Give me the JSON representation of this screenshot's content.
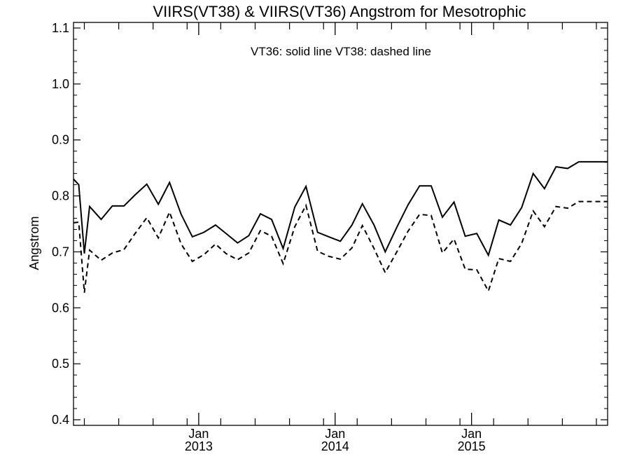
{
  "chart_data": {
    "type": "line",
    "title": "VIIRS(VT38) & VIIRS(VT36)  Angstrom for Mesotrophic",
    "xlabel": "",
    "ylabel": "Angstrom",
    "annotation": "VT36: solid line   VT38: dashed line",
    "ylim": [
      0.39,
      1.11
    ],
    "yticks": [
      0.4,
      0.5,
      0.6,
      0.7,
      0.8,
      0.9,
      1.0,
      1.1
    ],
    "ytick_labels": [
      "0.4",
      "0.5",
      "0.6",
      "0.7",
      "0.8",
      "0.9",
      "1.0",
      "1.1"
    ],
    "xlim": [
      "2012-02-01",
      "2015-12-31"
    ],
    "xticks": [
      {
        "date": "2013-01-01",
        "label_month": "Jan",
        "label_year": "2013"
      },
      {
        "date": "2014-01-01",
        "label_month": "Jan",
        "label_year": "2014"
      },
      {
        "date": "2015-01-01",
        "label_month": "Jan",
        "label_year": "2015"
      }
    ],
    "minor_ticks": [
      "2012-03-01",
      "2012-06-01",
      "2012-09-01",
      "2012-12-01",
      "2013-03-01",
      "2013-06-01",
      "2013-09-01",
      "2013-12-01",
      "2014-03-01",
      "2014-06-01",
      "2014-09-01",
      "2014-12-01",
      "2015-03-01",
      "2015-06-01",
      "2015-09-01",
      "2015-12-01"
    ],
    "x": [
      "2012-02-01",
      "2012-02-15",
      "2012-03-01",
      "2012-03-15",
      "2012-04-15",
      "2012-05-15",
      "2012-06-15",
      "2012-07-15",
      "2012-08-15",
      "2012-09-15",
      "2012-10-15",
      "2012-11-15",
      "2012-12-15",
      "2013-01-15",
      "2013-02-15",
      "2013-03-15",
      "2013-04-15",
      "2013-05-15",
      "2013-06-15",
      "2013-07-15",
      "2013-08-15",
      "2013-09-15",
      "2013-10-15",
      "2013-11-15",
      "2013-12-15",
      "2014-01-15",
      "2014-02-15",
      "2014-03-15",
      "2014-04-15",
      "2014-05-15",
      "2014-06-15",
      "2014-07-15",
      "2014-08-15",
      "2014-09-15",
      "2014-10-15",
      "2014-11-15",
      "2014-12-15",
      "2015-01-15",
      "2015-02-15",
      "2015-03-15",
      "2015-04-15",
      "2015-05-15",
      "2015-06-15",
      "2015-07-15",
      "2015-08-15",
      "2015-09-15",
      "2015-10-15",
      "2015-11-15",
      "2015-12-15",
      "2015-12-31"
    ],
    "series": [
      {
        "name": "VT36",
        "style": "solid",
        "values": [
          0.83,
          0.82,
          0.697,
          0.781,
          0.758,
          0.782,
          0.782,
          0.802,
          0.821,
          0.785,
          0.824,
          0.767,
          0.727,
          0.735,
          0.748,
          0.733,
          0.716,
          0.729,
          0.768,
          0.758,
          0.706,
          0.78,
          0.817,
          0.735,
          0.727,
          0.719,
          0.748,
          0.786,
          0.748,
          0.7,
          0.744,
          0.784,
          0.818,
          0.818,
          0.762,
          0.789,
          0.728,
          0.733,
          0.694,
          0.757,
          0.748,
          0.779,
          0.84,
          0.813,
          0.852,
          0.849,
          0.861,
          0.861,
          0.861,
          0.861
        ]
      },
      {
        "name": "VT38",
        "style": "dashed",
        "values": [
          0.752,
          0.753,
          0.627,
          0.703,
          0.685,
          0.698,
          0.704,
          0.733,
          0.761,
          0.725,
          0.771,
          0.714,
          0.683,
          0.695,
          0.714,
          0.697,
          0.686,
          0.698,
          0.738,
          0.728,
          0.679,
          0.745,
          0.783,
          0.701,
          0.692,
          0.687,
          0.707,
          0.747,
          0.706,
          0.663,
          0.7,
          0.737,
          0.767,
          0.765,
          0.698,
          0.723,
          0.669,
          0.668,
          0.63,
          0.688,
          0.683,
          0.715,
          0.773,
          0.745,
          0.781,
          0.778,
          0.79,
          0.79,
          0.79,
          0.79
        ]
      }
    ],
    "grid": false,
    "legend": "none"
  }
}
